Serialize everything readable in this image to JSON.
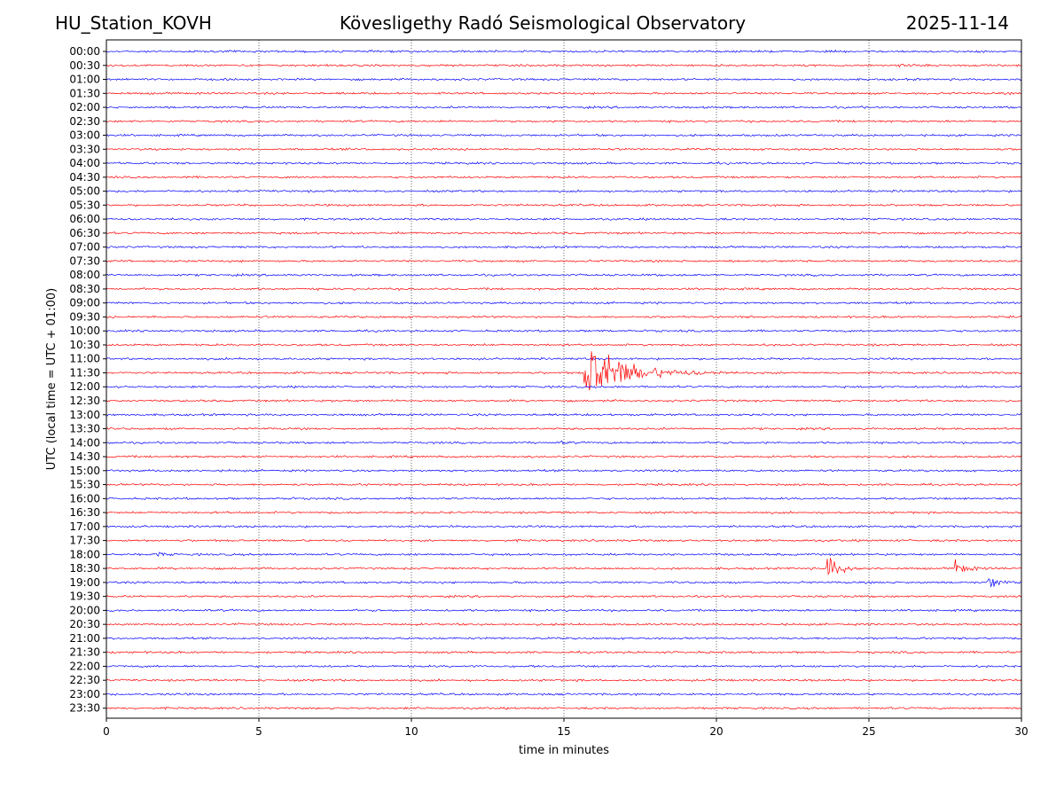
{
  "header": {
    "station": "HU_Station_KOVH",
    "title": "Kövesligethy Radó Seismological Observatory",
    "date": "2025-11-14"
  },
  "chart_data": {
    "type": "line",
    "subtype": "helicorder",
    "xlabel": "time in minutes",
    "ylabel": "UTC (local time = UTC + 01:00)",
    "xlim": [
      0,
      30
    ],
    "x_ticks": [
      0,
      5,
      10,
      15,
      20,
      25,
      30
    ],
    "grid": "vertical dotted",
    "colors": [
      "#0000ff",
      "#ff0000"
    ],
    "rows": [
      "00:00",
      "00:30",
      "01:00",
      "01:30",
      "02:00",
      "02:30",
      "03:00",
      "03:30",
      "04:00",
      "04:30",
      "05:00",
      "05:30",
      "06:00",
      "06:30",
      "07:00",
      "07:30",
      "08:00",
      "08:30",
      "09:00",
      "09:30",
      "10:00",
      "10:30",
      "11:00",
      "11:30",
      "12:00",
      "12:30",
      "13:00",
      "13:30",
      "14:00",
      "14:30",
      "15:00",
      "15:30",
      "16:00",
      "16:30",
      "17:00",
      "17:30",
      "18:00",
      "18:30",
      "19:00",
      "19:30",
      "20:00",
      "20:30",
      "21:00",
      "21:30",
      "22:00",
      "22:30",
      "23:00",
      "23:30"
    ],
    "events": [
      {
        "row": "00:30",
        "start_min": 26.0,
        "duration_min": 0.9,
        "amplitude": 0.28
      },
      {
        "row": "11:00",
        "start_min": 4.3,
        "duration_min": 0.6,
        "amplitude": 0.18
      },
      {
        "row": "11:30",
        "start_min": 15.65,
        "duration_min": 5.0,
        "amplitude": 3.6
      },
      {
        "row": "14:00",
        "start_min": 14.9,
        "duration_min": 0.8,
        "amplitude": 0.15
      },
      {
        "row": "16:00",
        "start_min": 5.8,
        "duration_min": 0.7,
        "amplitude": 0.15
      },
      {
        "row": "18:00",
        "start_min": 1.5,
        "duration_min": 1.0,
        "amplitude": 0.4
      },
      {
        "row": "18:30",
        "start_min": 23.6,
        "duration_min": 1.5,
        "amplitude": 1.6
      },
      {
        "row": "18:30",
        "start_min": 27.8,
        "duration_min": 1.5,
        "amplitude": 0.8
      },
      {
        "row": "19:00",
        "start_min": 28.9,
        "duration_min": 1.1,
        "amplitude": 1.0
      }
    ]
  }
}
